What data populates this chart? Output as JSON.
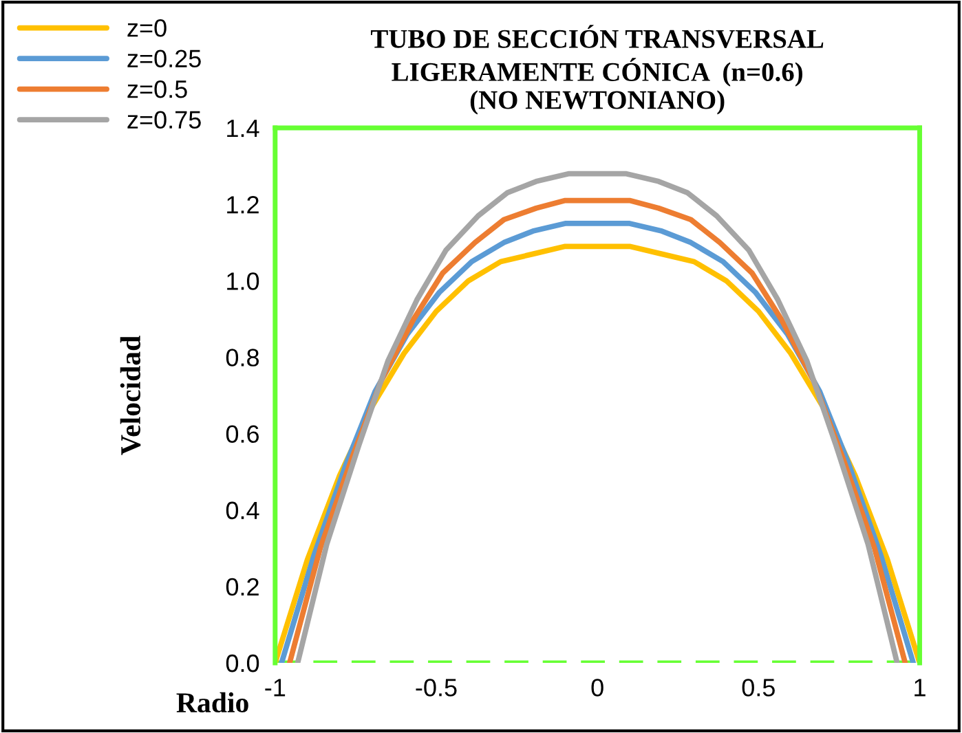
{
  "chart_data": {
    "type": "line",
    "title": "TUBO DE SECCIÓN TRANSVERSAL\nLIGERAMENTE CÓNICA  (n=0.6)\n(NO NEWTONIANO)",
    "xlabel": "Radio",
    "ylabel": "Velocidad",
    "xlim": [
      -1,
      1
    ],
    "xticks": [
      -1,
      -0.5,
      0,
      0.5,
      1
    ],
    "ylim": [
      0,
      1.4
    ],
    "yticks": [
      {
        "value": 0,
        "label": "0.0"
      },
      0.2,
      0.4,
      0.6,
      0.8,
      {
        "value": 1.0,
        "label": "1.0"
      },
      1.2,
      1.4
    ],
    "grid": false,
    "legend": "top left",
    "marker": "none",
    "line_style": "solid",
    "ref_lines": [
      {
        "axis": "y",
        "value": 0,
        "color": "#66ff33",
        "line_style": "dashed"
      }
    ],
    "series": [
      {
        "name": "z=0",
        "color": "#ffc000",
        "x": [
          -1,
          -0.9,
          -0.8,
          -0.7,
          -0.6,
          -0.5,
          -0.4,
          -0.3,
          -0.2,
          -0.1,
          0,
          0.1,
          0.2,
          0.3,
          0.4,
          0.5,
          0.6,
          0.7,
          0.8,
          0.9,
          1
        ],
        "values": [
          0,
          0.27,
          0.49,
          0.67,
          0.81,
          0.92,
          1.0,
          1.05,
          1.07,
          1.09,
          1.09,
          1.09,
          1.07,
          1.05,
          1.0,
          0.92,
          0.81,
          0.67,
          0.49,
          0.27,
          0
        ]
      },
      {
        "name": "z=0.25",
        "color": "#5b9bd5",
        "x": [
          -0.98,
          -0.88,
          -0.78,
          -0.69,
          -0.59,
          -0.49,
          -0.39,
          -0.29,
          -0.2,
          -0.1,
          0,
          0.1,
          0.2,
          0.29,
          0.39,
          0.49,
          0.59,
          0.69,
          0.78,
          0.88,
          0.98
        ],
        "values": [
          0,
          0.28,
          0.52,
          0.71,
          0.86,
          0.97,
          1.05,
          1.1,
          1.13,
          1.15,
          1.15,
          1.15,
          1.13,
          1.1,
          1.05,
          0.97,
          0.86,
          0.71,
          0.52,
          0.28,
          0
        ]
      },
      {
        "name": "z=0.5",
        "color": "#ed7d31",
        "x": [
          -0.955,
          -0.86,
          -0.76,
          -0.67,
          -0.57,
          -0.48,
          -0.38,
          -0.29,
          -0.19,
          -0.1,
          0,
          0.1,
          0.19,
          0.29,
          0.38,
          0.48,
          0.57,
          0.67,
          0.76,
          0.86,
          0.955
        ],
        "values": [
          0,
          0.3,
          0.54,
          0.74,
          0.9,
          1.02,
          1.1,
          1.16,
          1.19,
          1.21,
          1.21,
          1.21,
          1.19,
          1.16,
          1.1,
          1.02,
          0.9,
          0.74,
          0.54,
          0.3,
          0
        ]
      },
      {
        "name": "z=0.75",
        "color": "#a5a5a5",
        "x": [
          -0.93,
          -0.84,
          -0.74,
          -0.65,
          -0.56,
          -0.47,
          -0.37,
          -0.28,
          -0.19,
          -0.09,
          0,
          0.09,
          0.19,
          0.28,
          0.37,
          0.47,
          0.56,
          0.65,
          0.74,
          0.84,
          0.93
        ],
        "values": [
          0,
          0.31,
          0.57,
          0.79,
          0.95,
          1.08,
          1.17,
          1.23,
          1.26,
          1.28,
          1.28,
          1.28,
          1.26,
          1.23,
          1.17,
          1.08,
          0.95,
          0.79,
          0.57,
          0.31,
          0
        ]
      }
    ]
  }
}
